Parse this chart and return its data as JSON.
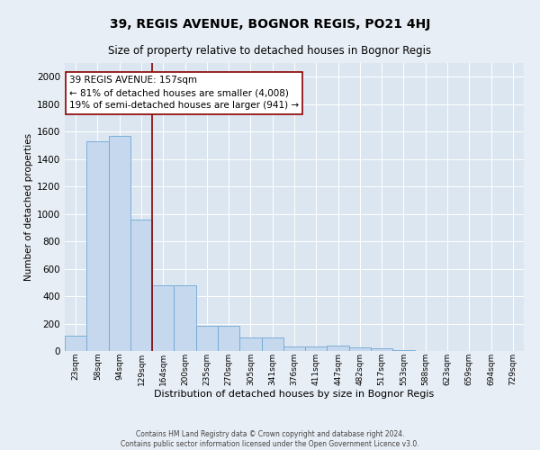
{
  "title": "39, REGIS AVENUE, BOGNOR REGIS, PO21 4HJ",
  "subtitle": "Size of property relative to detached houses in Bognor Regis",
  "xlabel": "Distribution of detached houses by size in Bognor Regis",
  "ylabel": "Number of detached properties",
  "categories": [
    "23sqm",
    "58sqm",
    "94sqm",
    "129sqm",
    "164sqm",
    "200sqm",
    "235sqm",
    "270sqm",
    "305sqm",
    "341sqm",
    "376sqm",
    "411sqm",
    "447sqm",
    "482sqm",
    "517sqm",
    "553sqm",
    "588sqm",
    "623sqm",
    "659sqm",
    "694sqm",
    "729sqm"
  ],
  "values": [
    110,
    1530,
    1570,
    960,
    480,
    480,
    185,
    185,
    100,
    100,
    35,
    35,
    40,
    25,
    20,
    5,
    3,
    2,
    2,
    2,
    2
  ],
  "bar_color": "#c5d8ee",
  "bar_edge_color": "#6fa8d4",
  "plot_bg_color": "#dce6f1",
  "fig_bg_color": "#e8eef5",
  "grid_color": "#ffffff",
  "vline_color": "#8b0000",
  "vline_x": 3.5,
  "ann_line1": "39 REGIS AVENUE: 157sqm",
  "ann_line2": "← 81% of detached houses are smaller (4,008)",
  "ann_line3": "19% of semi-detached houses are larger (941) →",
  "ann_facecolor": "#ffffff",
  "ann_edgecolor": "#8b0000",
  "ann_fontsize": 7.5,
  "title_fontsize": 10,
  "subtitle_fontsize": 8.5,
  "xlabel_fontsize": 8,
  "ylabel_fontsize": 7.5,
  "ytick_fontsize": 7.5,
  "xtick_fontsize": 6.5,
  "footer": "Contains HM Land Registry data © Crown copyright and database right 2024.\nContains public sector information licensed under the Open Government Licence v3.0.",
  "footer_fontsize": 5.5,
  "ylim": [
    0,
    2100
  ],
  "yticks": [
    0,
    200,
    400,
    600,
    800,
    1000,
    1200,
    1400,
    1600,
    1800,
    2000
  ]
}
